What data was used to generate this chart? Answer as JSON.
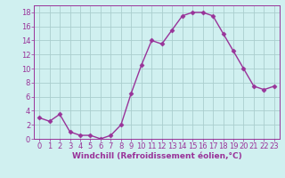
{
  "x": [
    0,
    1,
    2,
    3,
    4,
    5,
    6,
    7,
    8,
    9,
    10,
    11,
    12,
    13,
    14,
    15,
    16,
    17,
    18,
    19,
    20,
    21,
    22,
    23
  ],
  "y": [
    3,
    2.5,
    3.5,
    1,
    0.5,
    0.5,
    0,
    0.5,
    2,
    6.5,
    10.5,
    14,
    13.5,
    15.5,
    17.5,
    18,
    18,
    17.5,
    15,
    12.5,
    10,
    7.5,
    7,
    7.5
  ],
  "line_color": "#993399",
  "marker": "D",
  "markersize": 2.5,
  "linewidth": 1.0,
  "xlabel": "Windchill (Refroidissement éolien,°C)",
  "xlabel_fontsize": 6.5,
  "xlim": [
    -0.5,
    23.5
  ],
  "ylim": [
    0,
    19
  ],
  "yticks": [
    0,
    2,
    4,
    6,
    8,
    10,
    12,
    14,
    16,
    18
  ],
  "xticks": [
    0,
    1,
    2,
    3,
    4,
    5,
    6,
    7,
    8,
    9,
    10,
    11,
    12,
    13,
    14,
    15,
    16,
    17,
    18,
    19,
    20,
    21,
    22,
    23
  ],
  "background_color": "#d0f0f0",
  "grid_color": "#aacece",
  "tick_fontsize": 6,
  "tick_color": "#993399",
  "spine_color": "#993399"
}
